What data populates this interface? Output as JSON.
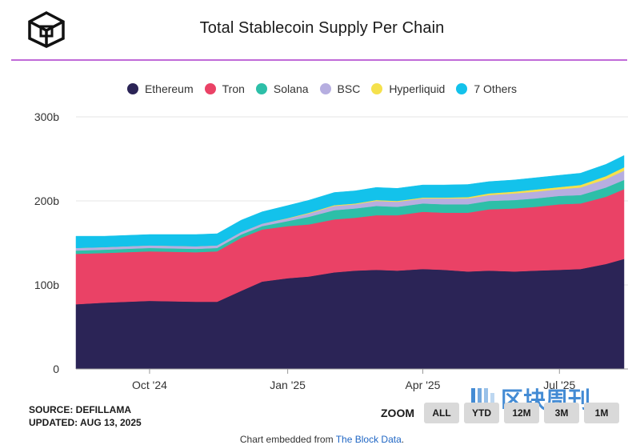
{
  "header": {
    "title": "Total Stablecoin Supply Per Chain"
  },
  "footer": {
    "source": "SOURCE: DEFILLAMA",
    "updated": "UPDATED: AUG 13, 2025",
    "zoom_label": "ZOOM",
    "zoom_buttons": [
      "ALL",
      "YTD",
      "12M",
      "3M",
      "1M"
    ],
    "embed_prefix": "Chart embedded from ",
    "embed_link": "The Block Data",
    "embed_suffix": "."
  },
  "watermark": {
    "text": "区块周刊"
  },
  "colors": {
    "Ethereum": "#2b2456",
    "Tron": "#ea4266",
    "Solana": "#2dbfa8",
    "BSC": "#b6aee0",
    "Hyperliquid": "#f5e14c",
    "7 Others": "#13c2eb",
    "divider": "#c06ad8",
    "grid": "#e6e6e6"
  },
  "chart_data": {
    "type": "area",
    "stacked": true,
    "legend_position": "top",
    "grid": true,
    "x": [
      "2024-08-13",
      "2024-09-01",
      "2024-10-01",
      "2024-11-01",
      "2024-11-15",
      "2024-12-01",
      "2024-12-15",
      "2025-01-01",
      "2025-01-15",
      "2025-02-01",
      "2025-02-15",
      "2025-03-01",
      "2025-03-15",
      "2025-04-01",
      "2025-04-15",
      "2025-05-01",
      "2025-05-15",
      "2025-06-01",
      "2025-06-15",
      "2025-07-01",
      "2025-07-15",
      "2025-08-01",
      "2025-08-13"
    ],
    "x_ticks": [
      "2024-10-01",
      "2025-01-01",
      "2025-04-01",
      "2025-07-01"
    ],
    "x_tick_labels": [
      "Oct '24",
      "Jan '25",
      "Apr '25",
      "Jul '25"
    ],
    "ylim": [
      0,
      300
    ],
    "y_ticks": [
      0,
      100,
      200,
      300
    ],
    "y_tick_labels": [
      "0",
      "100b",
      "200b",
      "300b"
    ],
    "series": [
      {
        "name": "Ethereum",
        "values": [
          77,
          79,
          81,
          80,
          80,
          93,
          104,
          108,
          110,
          115,
          117,
          118,
          117,
          119,
          118,
          116,
          117,
          116,
          117,
          118,
          119,
          125,
          131
        ]
      },
      {
        "name": "Tron",
        "values": [
          60,
          59,
          59,
          59,
          60,
          63,
          62,
          62,
          62,
          63,
          63,
          65,
          66,
          68,
          68,
          70,
          73,
          75,
          76,
          78,
          78,
          80,
          83
        ]
      },
      {
        "name": "Solana",
        "values": [
          4,
          4,
          4,
          4,
          4,
          4,
          4,
          6,
          9,
          11,
          11,
          11,
          10,
          10,
          10,
          10,
          10,
          10,
          10,
          10,
          10,
          11,
          11
        ]
      },
      {
        "name": "BSC",
        "values": [
          3,
          3,
          3,
          3,
          3,
          3,
          3,
          3,
          4,
          5,
          5,
          6,
          6,
          6,
          7,
          7,
          7,
          8,
          8,
          8,
          9,
          10,
          11
        ]
      },
      {
        "name": "Hyperliquid",
        "values": [
          0,
          0,
          0,
          0,
          0,
          0,
          0,
          0.5,
          0.8,
          1,
          1,
          1,
          1,
          1,
          1,
          1.5,
          2,
          2,
          2.5,
          2.5,
          3,
          3.5,
          4
        ]
      },
      {
        "name": "7 Others",
        "values": [
          14,
          13,
          13,
          14,
          14,
          14,
          14,
          15,
          15,
          15,
          15,
          15,
          15,
          15,
          15,
          15,
          14,
          14,
          14,
          14,
          14,
          14,
          14
        ]
      }
    ]
  }
}
